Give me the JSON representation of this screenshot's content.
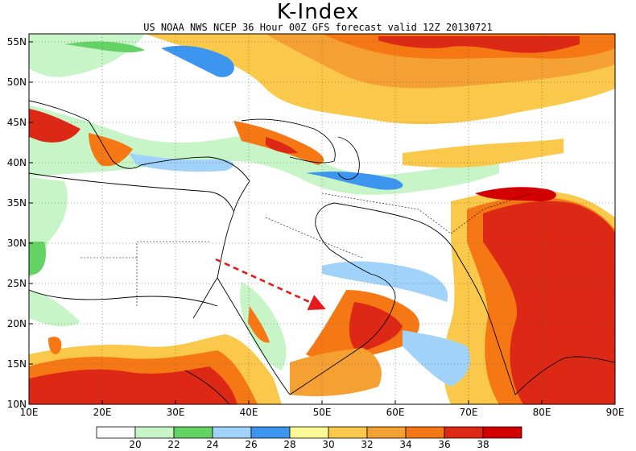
{
  "header": {
    "title": "K-Index",
    "subtitle": "US NOAA NWS NCEP 36 Hour 00Z GFS forecast valid 12Z 20130721"
  },
  "map": {
    "lon_range": [
      10,
      90
    ],
    "lat_range": [
      10,
      56
    ],
    "lon_ticks": [
      "10E",
      "20E",
      "30E",
      "40E",
      "50E",
      "60E",
      "70E",
      "80E",
      "90E"
    ],
    "lat_ticks": [
      "10N",
      "15N",
      "20N",
      "25N",
      "30N",
      "35N",
      "40N",
      "45N",
      "50N",
      "55N"
    ],
    "grid": "dotted",
    "annotation": {
      "type": "arrow",
      "color": "#e41a1c",
      "style": "dashed",
      "from": [
        35.5,
        28
      ],
      "to": [
        50,
        22
      ]
    }
  },
  "colorbar": {
    "labels": [
      "20",
      "22",
      "24",
      "26",
      "28",
      "30",
      "32",
      "34",
      "36",
      "38"
    ],
    "colors": [
      "#ffffff",
      "#c8f5c8",
      "#64d264",
      "#a0d2fa",
      "#3c96f0",
      "#fffa96",
      "#fac84b",
      "#f5a032",
      "#f57814",
      "#dc2814",
      "#d20000"
    ]
  }
}
